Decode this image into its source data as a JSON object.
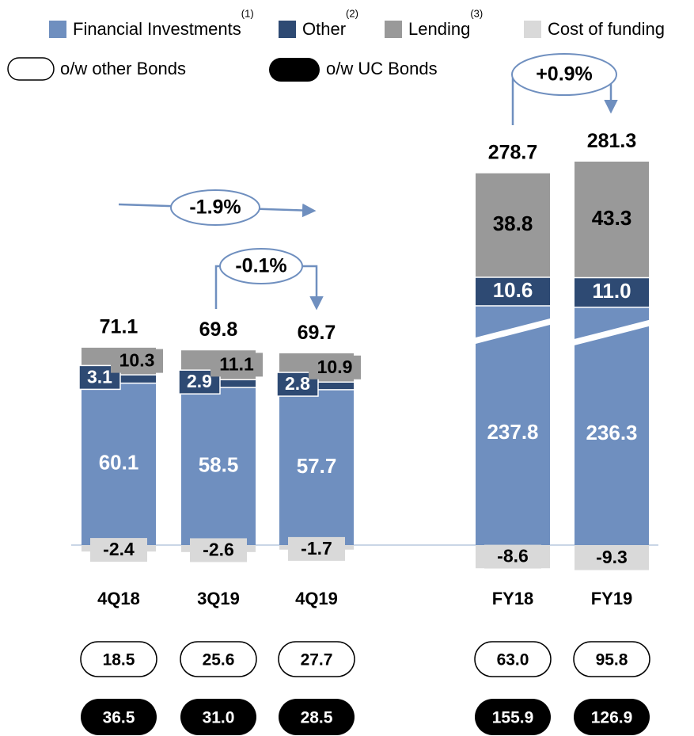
{
  "chart_data": {
    "type": "stacked_bar",
    "categories": [
      "4Q18",
      "3Q19",
      "4Q19",
      "FY18",
      "FY19"
    ],
    "series": [
      {
        "name": "Financial Investments",
        "note": "(1)",
        "color": "#6f8fbf",
        "values": [
          60.1,
          58.5,
          57.7,
          237.8,
          236.3
        ]
      },
      {
        "name": "Other",
        "note": "(2)",
        "color": "#2e4a73",
        "values": [
          3.1,
          2.9,
          2.8,
          10.6,
          11.0
        ],
        "value_labels": [
          "3.1",
          "2.9",
          "2.8",
          "10.6",
          "11.0"
        ]
      },
      {
        "name": "Lending",
        "note": "(3)",
        "color": "#999999",
        "values": [
          10.3,
          11.1,
          10.9,
          38.8,
          43.3
        ]
      },
      {
        "name": "Cost of funding",
        "color": "#d9d9d9",
        "values": [
          -2.4,
          -2.6,
          -1.7,
          -8.6,
          -9.3
        ]
      }
    ],
    "totals": [
      71.1,
      69.8,
      69.7,
      278.7,
      281.3
    ],
    "other_bonds": {
      "name": "o/w other Bonds",
      "values": [
        18.5,
        25.6,
        27.7,
        63.0,
        95.8
      ],
      "value_labels": [
        "18.5",
        "25.6",
        "27.7",
        "63.0",
        "95.8"
      ]
    },
    "uc_bonds": {
      "name": "o/w UC Bonds",
      "values": [
        36.5,
        31.0,
        28.5,
        155.9,
        126.9
      ],
      "value_labels": [
        "36.5",
        "31.0",
        "28.5",
        "155.9",
        "126.9"
      ]
    },
    "annotations": [
      "-1.9%",
      "-0.1%",
      "+0.9%"
    ]
  }
}
